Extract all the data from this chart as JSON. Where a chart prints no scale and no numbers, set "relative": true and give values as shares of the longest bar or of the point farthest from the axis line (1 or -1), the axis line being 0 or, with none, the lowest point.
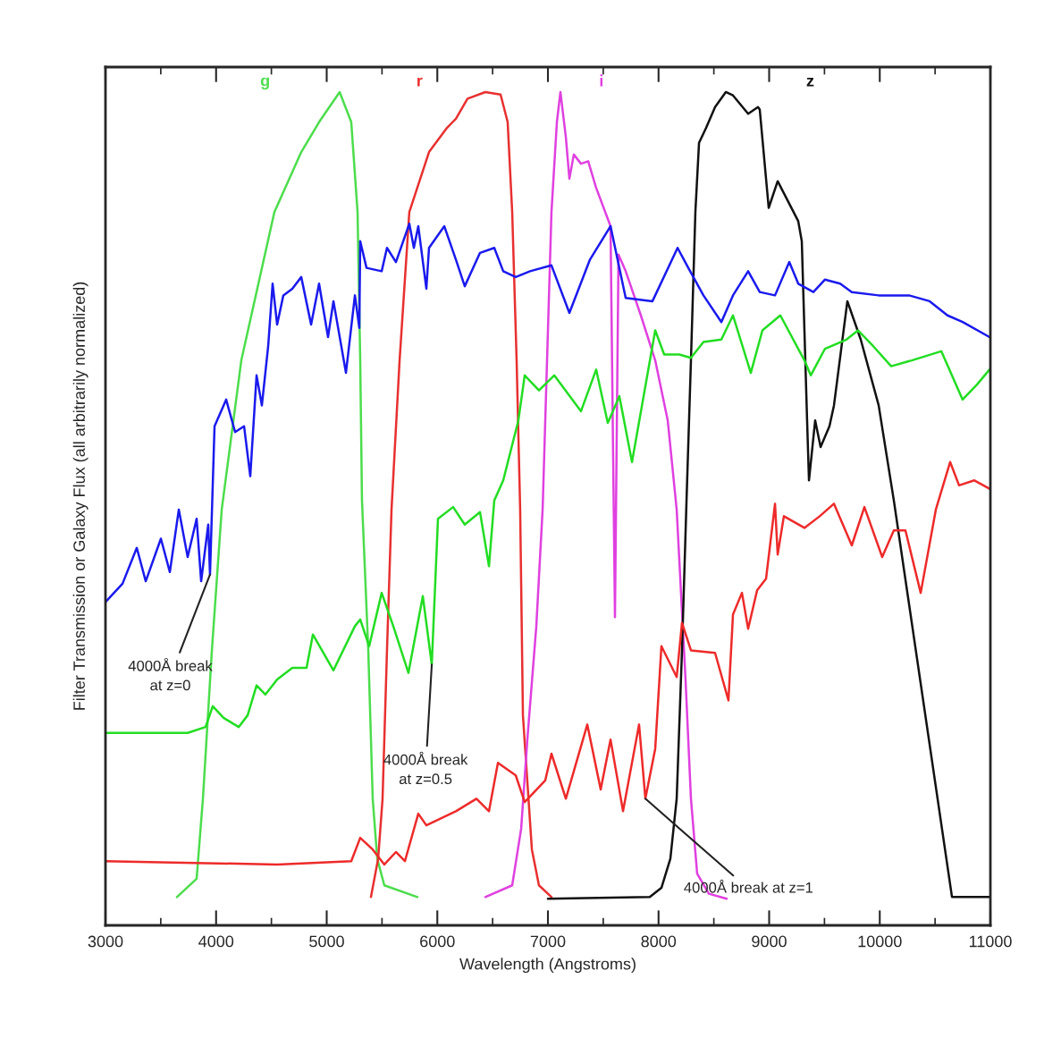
{
  "chart_data": {
    "type": "line",
    "relative": true,
    "xlabel": "Wavelength (Angstroms)",
    "ylabel": "Filter Transmission or Galaxy Flux (all arbitrarily normalized)",
    "xlim": [
      3000,
      11000
    ],
    "xticks": [
      3000,
      4000,
      5000,
      6000,
      7000,
      8000,
      9000,
      10000,
      11000
    ],
    "grid": false,
    "legend": false,
    "marker": "none",
    "line_style": "solid",
    "series": [
      {
        "name": "g",
        "color": "#4cdd4c",
        "x": [
          3646,
          3824,
          3881,
          3962,
          4051,
          4228,
          4527,
          4770,
          4931,
          5117,
          5222,
          5279,
          5303,
          5319,
          5376,
          5416,
          5457,
          5521,
          5820
        ],
        "values": [
          0.034,
          0.056,
          0.152,
          0.33,
          0.499,
          0.678,
          0.856,
          0.928,
          0.964,
          1.0,
          0.964,
          0.856,
          0.678,
          0.51,
          0.33,
          0.152,
          0.08,
          0.048,
          0.034
        ]
      },
      {
        "name": "r",
        "color": "#e83030",
        "x": [
          5400,
          5465,
          5505,
          5545,
          5586,
          5659,
          5747,
          5925,
          6087,
          6168,
          6273,
          6434,
          6572,
          6636,
          6677,
          6717,
          6749,
          6774,
          6855,
          6919,
          7032
        ],
        "values": [
          0.034,
          0.08,
          0.152,
          0.33,
          0.499,
          0.678,
          0.856,
          0.928,
          0.957,
          0.968,
          0.992,
          1.0,
          0.997,
          0.964,
          0.856,
          0.678,
          0.499,
          0.252,
          0.091,
          0.048,
          0.034
        ]
      },
      {
        "name": "i",
        "color": "#e040e0",
        "x": [
          6434,
          6677,
          6758,
          6814,
          6895,
          6952,
          7032,
          7081,
          7113,
          7162,
          7194,
          7234,
          7299,
          7364,
          7436,
          7566,
          7606,
          7638,
          7703,
          7840,
          7970,
          8083,
          8164,
          8244,
          8293,
          8349,
          8455,
          8616
        ],
        "values": [
          0.034,
          0.048,
          0.116,
          0.223,
          0.359,
          0.499,
          0.856,
          0.964,
          1.0,
          0.946,
          0.896,
          0.925,
          0.914,
          0.917,
          0.885,
          0.839,
          0.37,
          0.805,
          0.785,
          0.732,
          0.678,
          0.606,
          0.499,
          0.295,
          0.152,
          0.062,
          0.038,
          0.032
        ]
      },
      {
        "name": "z",
        "color": "#111111",
        "x": [
          7000,
          7921,
          8026,
          8107,
          8164,
          8212,
          8253,
          8293,
          8333,
          8366,
          8430,
          8511,
          8608,
          8673,
          8810,
          8899,
          8915,
          8996,
          9077,
          9263,
          9295,
          9343,
          9360,
          9416,
          9465,
          9545,
          9586,
          9707,
          9828,
          9990,
          10127,
          10653,
          10992
        ],
        "values": [
          0.032,
          0.034,
          0.045,
          0.08,
          0.152,
          0.33,
          0.51,
          0.678,
          0.856,
          0.939,
          0.957,
          0.982,
          1.0,
          0.996,
          0.974,
          0.982,
          0.979,
          0.861,
          0.893,
          0.845,
          0.821,
          0.606,
          0.534,
          0.606,
          0.574,
          0.599,
          0.624,
          0.749,
          0.703,
          0.624,
          0.51,
          0.034,
          0.034
        ]
      },
      {
        "color": "#1a1aee",
        "x": [
          3000,
          3154,
          3283,
          3364,
          3501,
          3582,
          3663,
          3743,
          3824,
          3865,
          3929,
          3945,
          3986,
          4091,
          4172,
          4253,
          4309,
          4366,
          4414,
          4471,
          4511,
          4552,
          4608,
          4689,
          4770,
          4859,
          4931,
          5012,
          5061,
          5174,
          5255,
          5295,
          5303,
          5360,
          5497,
          5545,
          5626,
          5747,
          5788,
          5828,
          5901,
          5925,
          6063,
          6168,
          6248,
          6386,
          6515,
          6596,
          6709,
          6838,
          7032,
          7194,
          7380,
          7566,
          7703,
          7945,
          8172,
          8269,
          8406,
          8568,
          8673,
          8810,
          8915,
          9053,
          9182,
          9263,
          9400,
          9505,
          9642,
          9747,
          9990,
          10265,
          10451,
          10612,
          10749,
          10992
        ],
        "values": [
          0.388,
          0.41,
          0.453,
          0.413,
          0.464,
          0.424,
          0.499,
          0.442,
          0.488,
          0.413,
          0.481,
          0.421,
          0.599,
          0.631,
          0.592,
          0.599,
          0.539,
          0.66,
          0.624,
          0.695,
          0.77,
          0.721,
          0.756,
          0.764,
          0.778,
          0.721,
          0.77,
          0.706,
          0.749,
          0.663,
          0.756,
          0.717,
          0.821,
          0.789,
          0.785,
          0.813,
          0.796,
          0.842,
          0.813,
          0.839,
          0.764,
          0.813,
          0.839,
          0.799,
          0.767,
          0.807,
          0.813,
          0.785,
          0.778,
          0.785,
          0.792,
          0.735,
          0.799,
          0.839,
          0.753,
          0.749,
          0.813,
          0.789,
          0.756,
          0.724,
          0.756,
          0.785,
          0.76,
          0.756,
          0.796,
          0.77,
          0.76,
          0.775,
          0.77,
          0.76,
          0.756,
          0.756,
          0.749,
          0.732,
          0.724,
          0.706
        ]
      },
      {
        "color": "#22dd22",
        "x": [
          3000,
          3743,
          3905,
          3970,
          4067,
          4204,
          4285,
          4366,
          4446,
          4552,
          4689,
          4818,
          4875,
          5061,
          5255,
          5303,
          5384,
          5497,
          5602,
          5739,
          5869,
          5950,
          6006,
          6143,
          6248,
          6386,
          6467,
          6515,
          6596,
          6733,
          6790,
          6919,
          7057,
          7299,
          7436,
          7541,
          7646,
          7760,
          7970,
          8051,
          8188,
          8293,
          8406,
          8568,
          8673,
          8834,
          8939,
          9101,
          9319,
          9376,
          9505,
          9699,
          9804,
          9941,
          10103,
          10289,
          10556,
          10749,
          10879,
          10992
        ],
        "values": [
          0.231,
          0.231,
          0.238,
          0.263,
          0.249,
          0.238,
          0.252,
          0.288,
          0.277,
          0.295,
          0.309,
          0.309,
          0.349,
          0.306,
          0.359,
          0.367,
          0.335,
          0.399,
          0.359,
          0.303,
          0.395,
          0.313,
          0.488,
          0.502,
          0.481,
          0.496,
          0.431,
          0.51,
          0.534,
          0.606,
          0.66,
          0.642,
          0.66,
          0.617,
          0.667,
          0.603,
          0.635,
          0.556,
          0.714,
          0.685,
          0.685,
          0.681,
          0.7,
          0.703,
          0.732,
          0.663,
          0.714,
          0.732,
          0.678,
          0.66,
          0.692,
          0.703,
          0.714,
          0.695,
          0.671,
          0.678,
          0.689,
          0.631,
          0.649,
          0.667
        ]
      },
      {
        "color": "#ee2a2a",
        "x": [
          3000,
          4552,
          5222,
          5303,
          5416,
          5521,
          5626,
          5707,
          5828,
          5901,
          6168,
          6354,
          6467,
          6548,
          6709,
          6790,
          6976,
          7032,
          7162,
          7356,
          7477,
          7566,
          7679,
          7824,
          7881,
          7970,
          8026,
          8164,
          8212,
          8293,
          8511,
          8632,
          8673,
          8754,
          8810,
          8891,
          8972,
          9053,
          9077,
          9133,
          9319,
          9457,
          9586,
          9747,
          9861,
          10022,
          10127,
          10232,
          10370,
          10507,
          10636,
          10717,
          10855,
          10992
        ],
        "values": [
          0.077,
          0.073,
          0.077,
          0.105,
          0.091,
          0.073,
          0.088,
          0.077,
          0.134,
          0.12,
          0.137,
          0.152,
          0.137,
          0.195,
          0.18,
          0.148,
          0.174,
          0.206,
          0.152,
          0.241,
          0.163,
          0.223,
          0.137,
          0.241,
          0.152,
          0.212,
          0.335,
          0.298,
          0.363,
          0.33,
          0.327,
          0.27,
          0.373,
          0.399,
          0.356,
          0.402,
          0.416,
          0.506,
          0.445,
          0.491,
          0.477,
          0.491,
          0.506,
          0.456,
          0.502,
          0.442,
          0.474,
          0.474,
          0.399,
          0.499,
          0.556,
          0.528,
          0.534,
          0.524
        ]
      }
    ],
    "annotations": [
      {
        "text": "4000Å break\nat z=0",
        "x": 3945,
        "y": 0.421
      },
      {
        "text": "4000Å break\nat z=0.5",
        "x": 5950,
        "y": 0.313
      },
      {
        "text": "4000Å break at z=1",
        "x": 7881,
        "y": 0.152
      }
    ]
  }
}
